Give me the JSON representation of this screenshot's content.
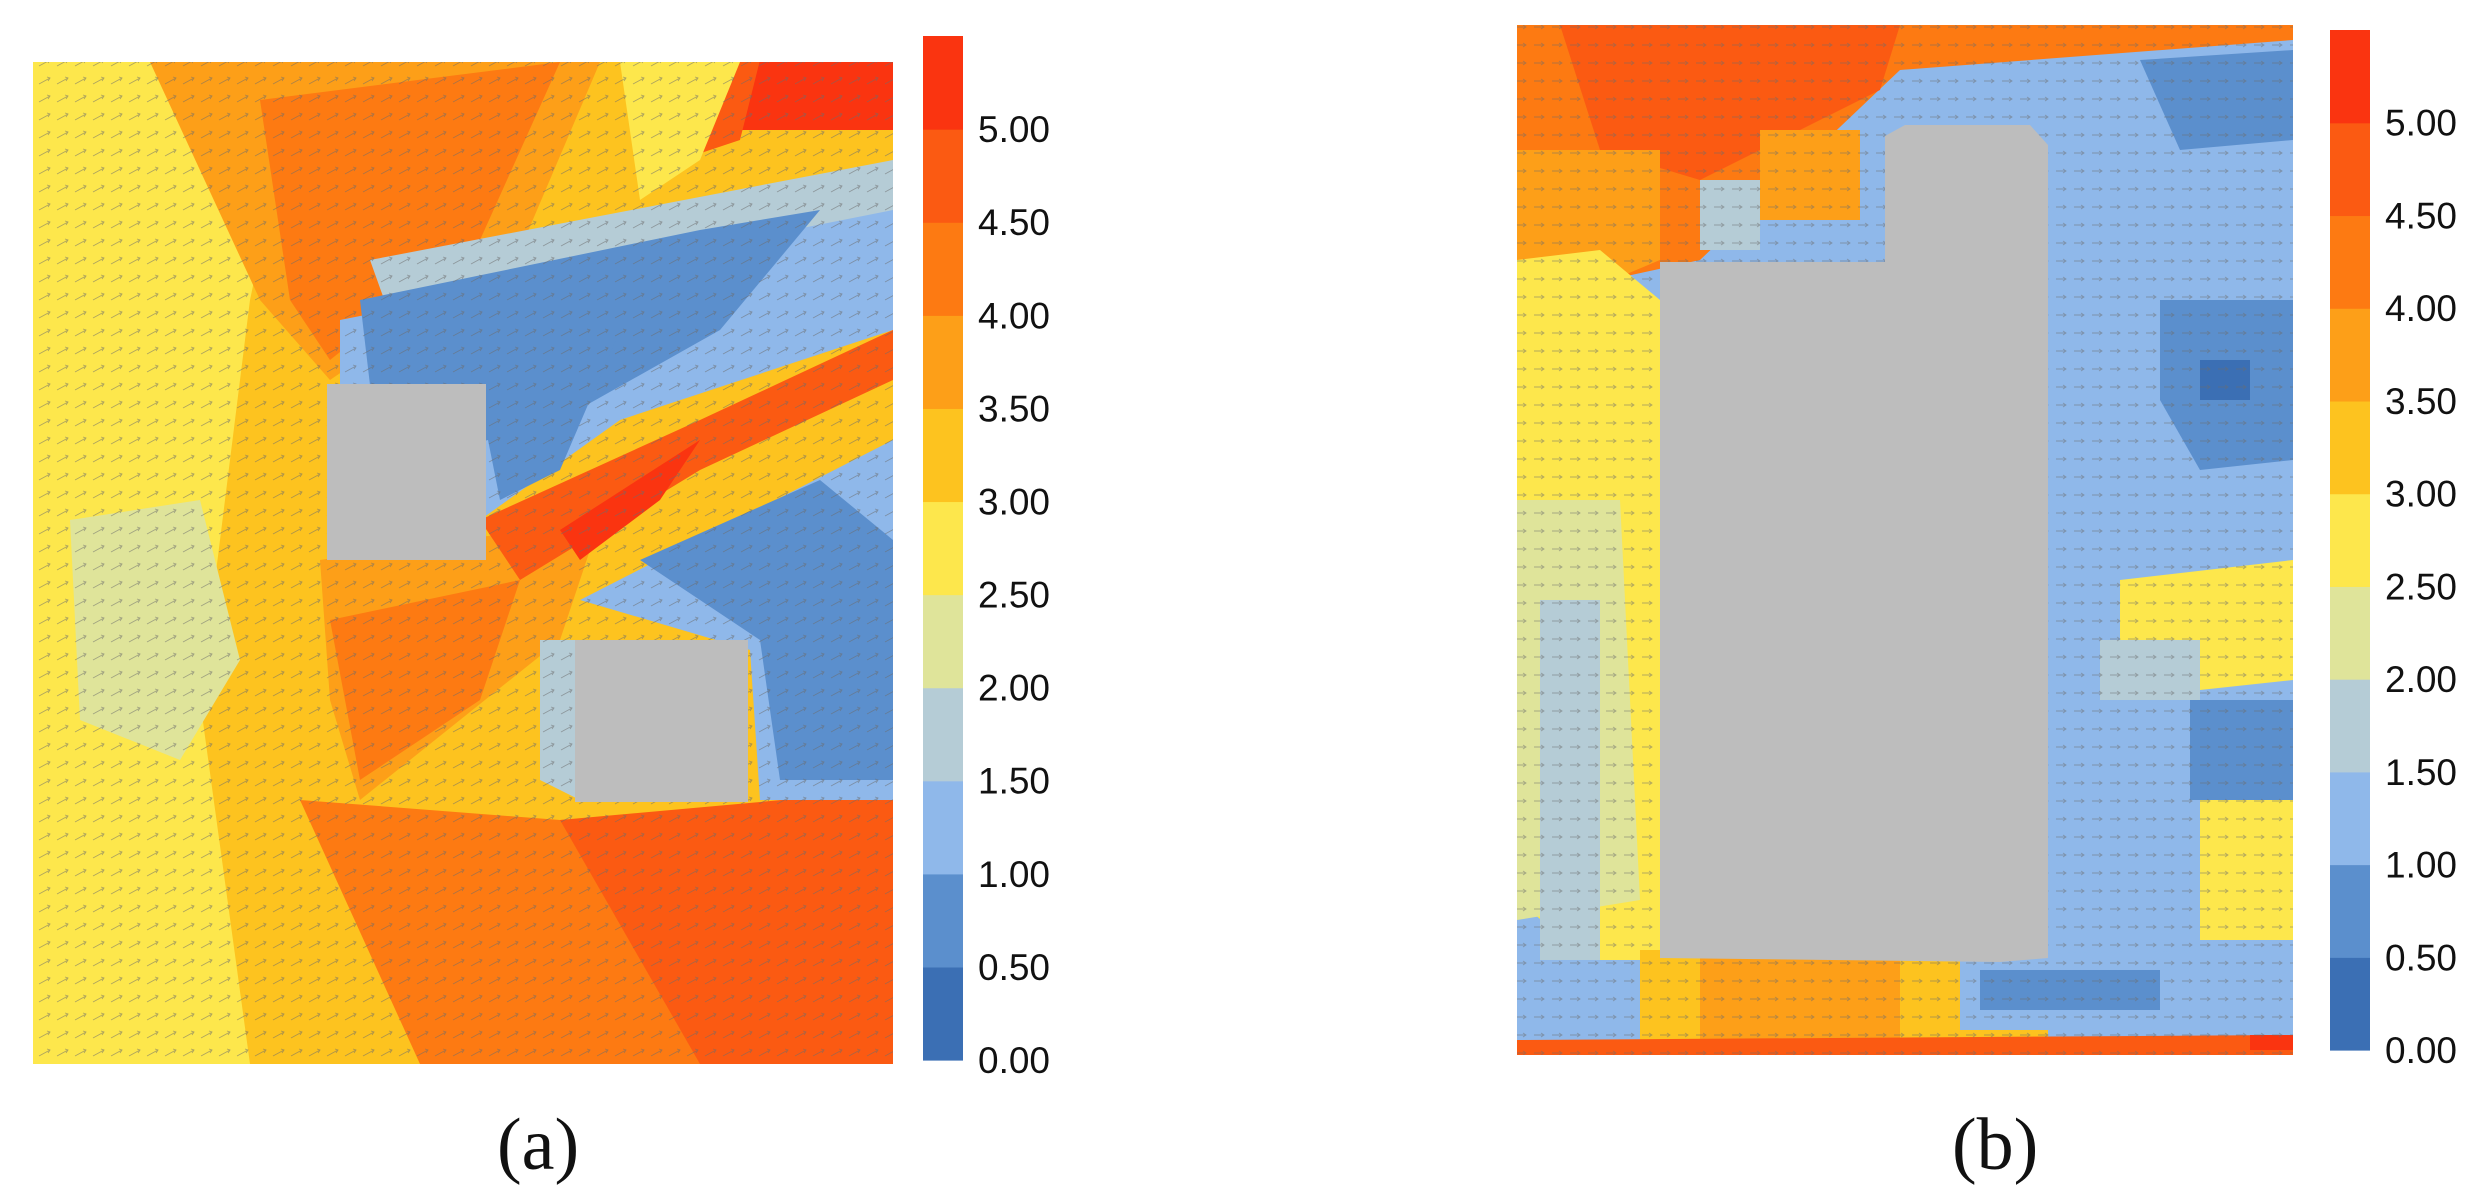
{
  "colors": {
    "scale": [
      "#3b6fb4",
      "#5b8fcd",
      "#8fb8ea",
      "#b5ccd6",
      "#dfe49a",
      "#fde74c",
      "#fdc31f",
      "#fd9f18",
      "#fd7a12",
      "#fb5a12",
      "#fa3410"
    ],
    "obstacle": "#bdbdbd"
  },
  "chart_data": [
    {
      "type": "heatmap",
      "panel": "a",
      "caption": "(a)",
      "colorbar": {
        "ticks": [
          "0.00",
          "0.50",
          "1.00",
          "1.50",
          "2.00",
          "2.50",
          "3.00",
          "3.50",
          "4.00",
          "4.50",
          "5.00"
        ],
        "range": [
          0,
          5.5
        ],
        "step": 0.5
      },
      "obstacles": 2,
      "overlay": "velocity vectors"
    },
    {
      "type": "heatmap",
      "panel": "b",
      "caption": "(b)",
      "colorbar": {
        "ticks": [
          "0.00",
          "0.50",
          "1.00",
          "1.50",
          "2.00",
          "2.50",
          "3.00",
          "3.50",
          "4.00",
          "4.50",
          "5.00"
        ],
        "range": [
          0,
          5.5
        ],
        "step": 0.5
      },
      "obstacles": 1,
      "overlay": "velocity vectors"
    }
  ]
}
